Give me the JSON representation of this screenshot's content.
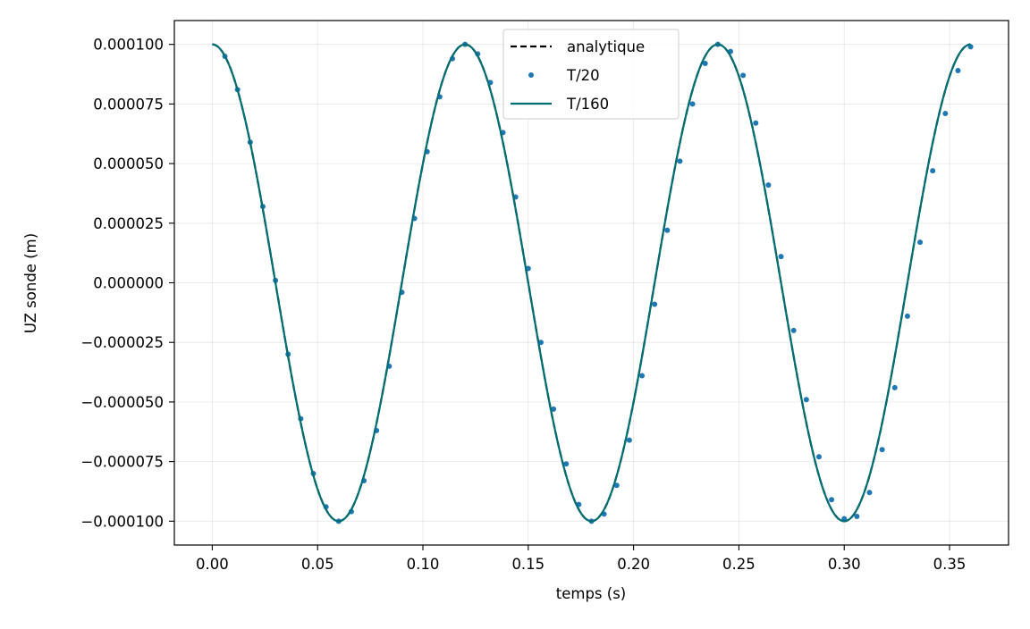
{
  "chart_data": {
    "type": "line",
    "title": "",
    "xlabel": "temps (s)",
    "ylabel": "UZ sonde (m)",
    "xlim": [
      -0.018,
      0.378
    ],
    "ylim": [
      -0.00011,
      0.00011
    ],
    "grid": true,
    "legend_position": "top-center",
    "x_ticks": [
      0.0,
      0.05,
      0.1,
      0.15,
      0.2,
      0.25,
      0.3,
      0.35
    ],
    "x_tick_labels": [
      "0.00",
      "0.05",
      "0.10",
      "0.15",
      "0.20",
      "0.25",
      "0.30",
      "0.35"
    ],
    "y_ticks": [
      0.0001,
      7.5e-05,
      5e-05,
      2.5e-05,
      0.0,
      -2.5e-05,
      -5e-05,
      -7.5e-05,
      -0.0001
    ],
    "y_tick_labels": [
      "0.000100",
      "0.000075",
      "0.000050",
      "0.000025",
      "0.000000",
      "−0.000025",
      "−0.000050",
      "−0.000075",
      "−0.000100"
    ],
    "series": [
      {
        "name": "analytique",
        "style": "dashed-line",
        "color": "#000000",
        "function": "cos",
        "amplitude": 0.0001,
        "period": 0.12,
        "x_range": [
          0.0,
          0.36
        ]
      },
      {
        "name": "T/20",
        "style": "dots",
        "color": "#1f77b4",
        "x": [
          0.006,
          0.012,
          0.018,
          0.024,
          0.03,
          0.036,
          0.042,
          0.048,
          0.054,
          0.06,
          0.066,
          0.072,
          0.078,
          0.084,
          0.09,
          0.096,
          0.102,
          0.108,
          0.114,
          0.12,
          0.126,
          0.132,
          0.138,
          0.144,
          0.15,
          0.156,
          0.162,
          0.168,
          0.174,
          0.18,
          0.186,
          0.192,
          0.198,
          0.204,
          0.21,
          0.216,
          0.222,
          0.228,
          0.234,
          0.24,
          0.246,
          0.252,
          0.258,
          0.264,
          0.27,
          0.276,
          0.282,
          0.288,
          0.294,
          0.3,
          0.306,
          0.312,
          0.318,
          0.324,
          0.33,
          0.336,
          0.342,
          0.348,
          0.354,
          0.36
        ],
        "y": [
          9.5e-05,
          8.1e-05,
          5.9e-05,
          3.2e-05,
          1e-06,
          -3e-05,
          -5.7e-05,
          -8e-05,
          -9.4e-05,
          -0.0001,
          -9.6e-05,
          -8.3e-05,
          -6.2e-05,
          -3.5e-05,
          -4e-06,
          2.7e-05,
          5.5e-05,
          7.8e-05,
          9.4e-05,
          0.0001,
          9.6e-05,
          8.4e-05,
          6.3e-05,
          3.6e-05,
          6e-06,
          -2.5e-05,
          -5.3e-05,
          -7.6e-05,
          -9.3e-05,
          -0.0001,
          -9.7e-05,
          -8.5e-05,
          -6.6e-05,
          -3.9e-05,
          -9e-06,
          2.2e-05,
          5.1e-05,
          7.5e-05,
          9.2e-05,
          0.0001,
          9.7e-05,
          8.7e-05,
          6.7e-05,
          4.1e-05,
          1.1e-05,
          -2e-05,
          -4.9e-05,
          -7.3e-05,
          -9.1e-05,
          -9.9e-05,
          -9.8e-05,
          -8.8e-05,
          -7e-05,
          -4.4e-05,
          -1.4e-05,
          1.7e-05,
          4.7e-05,
          7.1e-05,
          8.9e-05,
          9.9e-05
        ]
      },
      {
        "name": "T/160",
        "style": "solid-line",
        "color": "#006e72",
        "function": "cos",
        "amplitude": 0.0001,
        "period": 0.12,
        "x_range": [
          0.0,
          0.36
        ]
      }
    ]
  }
}
